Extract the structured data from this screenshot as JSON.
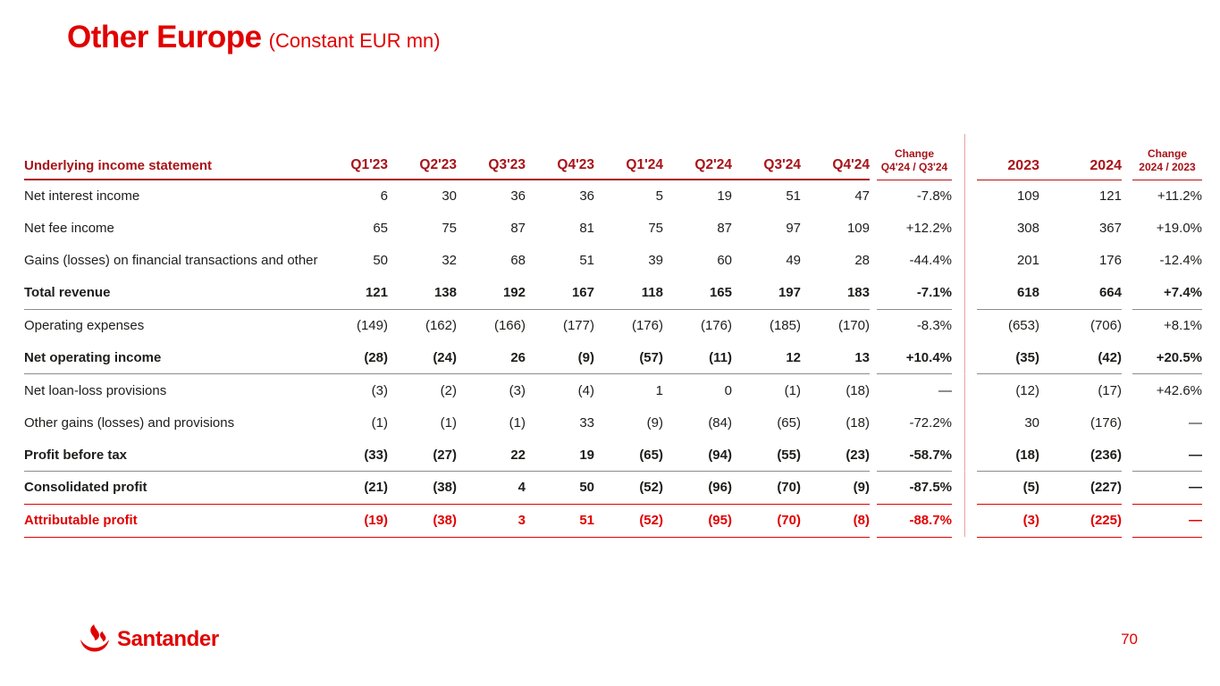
{
  "slide": {
    "title": "Other Europe",
    "subtitle": "(Constant EUR mn)",
    "page_number": "70",
    "logo_text": "Santander"
  },
  "colors": {
    "santander_red": "#e10000",
    "header_dark_red": "#a81318",
    "divider_pink": "#e3a3a3",
    "separator_gray": "#8c8c8c",
    "body_text": "#1d1d1b"
  },
  "table": {
    "label_header": "Underlying income statement",
    "quarter_headers": [
      "Q1'23",
      "Q2'23",
      "Q3'23",
      "Q4'23",
      "Q1'24",
      "Q2'24",
      "Q3'24",
      "Q4'24"
    ],
    "change_quarter_header": {
      "line1": "Change",
      "line2": "Q4'24 / Q3'24"
    },
    "year_headers": [
      "2023",
      "2024"
    ],
    "change_year_header": {
      "line1": "Change",
      "line2": "2024 / 2023"
    },
    "rows": [
      {
        "label": "Net interest income",
        "style": "normal",
        "rule": "none",
        "quarters": [
          "6",
          "30",
          "36",
          "36",
          "5",
          "19",
          "51",
          "47"
        ],
        "change_q": "-7.8%",
        "years": [
          "109",
          "121"
        ],
        "change_y": "+11.2%"
      },
      {
        "label": "Net fee income",
        "style": "normal",
        "rule": "none",
        "quarters": [
          "65",
          "75",
          "87",
          "81",
          "75",
          "87",
          "97",
          "109"
        ],
        "change_q": "+12.2%",
        "years": [
          "308",
          "367"
        ],
        "change_y": "+19.0%"
      },
      {
        "label": "Gains (losses) on financial transactions and other",
        "style": "normal",
        "rule": "none",
        "quarters": [
          "50",
          "32",
          "68",
          "51",
          "39",
          "60",
          "49",
          "28"
        ],
        "change_q": "-44.4%",
        "years": [
          "201",
          "176"
        ],
        "change_y": "-12.4%"
      },
      {
        "label": "Total revenue",
        "style": "bold",
        "rule": "gray",
        "quarters": [
          "121",
          "138",
          "192",
          "167",
          "118",
          "165",
          "197",
          "183"
        ],
        "change_q": "-7.1%",
        "years": [
          "618",
          "664"
        ],
        "change_y": "+7.4%"
      },
      {
        "label": "Operating expenses",
        "style": "normal",
        "rule": "none",
        "quarters": [
          "(149)",
          "(162)",
          "(166)",
          "(177)",
          "(176)",
          "(176)",
          "(185)",
          "(170)"
        ],
        "change_q": "-8.3%",
        "years": [
          "(653)",
          "(706)"
        ],
        "change_y": "+8.1%"
      },
      {
        "label": "Net operating income",
        "style": "bold",
        "rule": "gray",
        "quarters": [
          "(28)",
          "(24)",
          "26",
          "(9)",
          "(57)",
          "(11)",
          "12",
          "13"
        ],
        "change_q": "+10.4%",
        "years": [
          "(35)",
          "(42)"
        ],
        "change_y": "+20.5%"
      },
      {
        "label": "Net loan-loss provisions",
        "style": "normal",
        "rule": "none",
        "quarters": [
          "(3)",
          "(2)",
          "(3)",
          "(4)",
          "1",
          "0",
          "(1)",
          "(18)"
        ],
        "change_q": "—",
        "years": [
          "(12)",
          "(17)"
        ],
        "change_y": "+42.6%"
      },
      {
        "label": "Other gains (losses) and provisions",
        "style": "normal",
        "rule": "none",
        "quarters": [
          "(1)",
          "(1)",
          "(1)",
          "33",
          "(9)",
          "(84)",
          "(65)",
          "(18)"
        ],
        "change_q": "-72.2%",
        "years": [
          "30",
          "(176)"
        ],
        "change_y": "—"
      },
      {
        "label": "Profit before tax",
        "style": "bold",
        "rule": "gray",
        "quarters": [
          "(33)",
          "(27)",
          "22",
          "19",
          "(65)",
          "(94)",
          "(55)",
          "(23)"
        ],
        "change_q": "-58.7%",
        "years": [
          "(18)",
          "(236)"
        ],
        "change_y": "—"
      },
      {
        "label": "Consolidated profit",
        "style": "bold",
        "rule": "red",
        "quarters": [
          "(21)",
          "(38)",
          "4",
          "50",
          "(52)",
          "(96)",
          "(70)",
          "(9)"
        ],
        "change_q": "-87.5%",
        "years": [
          "(5)",
          "(227)"
        ],
        "change_y": "—"
      },
      {
        "label": "Attributable profit",
        "style": "red",
        "rule": "red",
        "quarters": [
          "(19)",
          "(38)",
          "3",
          "51",
          "(52)",
          "(95)",
          "(70)",
          "(8)"
        ],
        "change_q": "-88.7%",
        "years": [
          "(3)",
          "(225)"
        ],
        "change_y": "—"
      }
    ]
  }
}
